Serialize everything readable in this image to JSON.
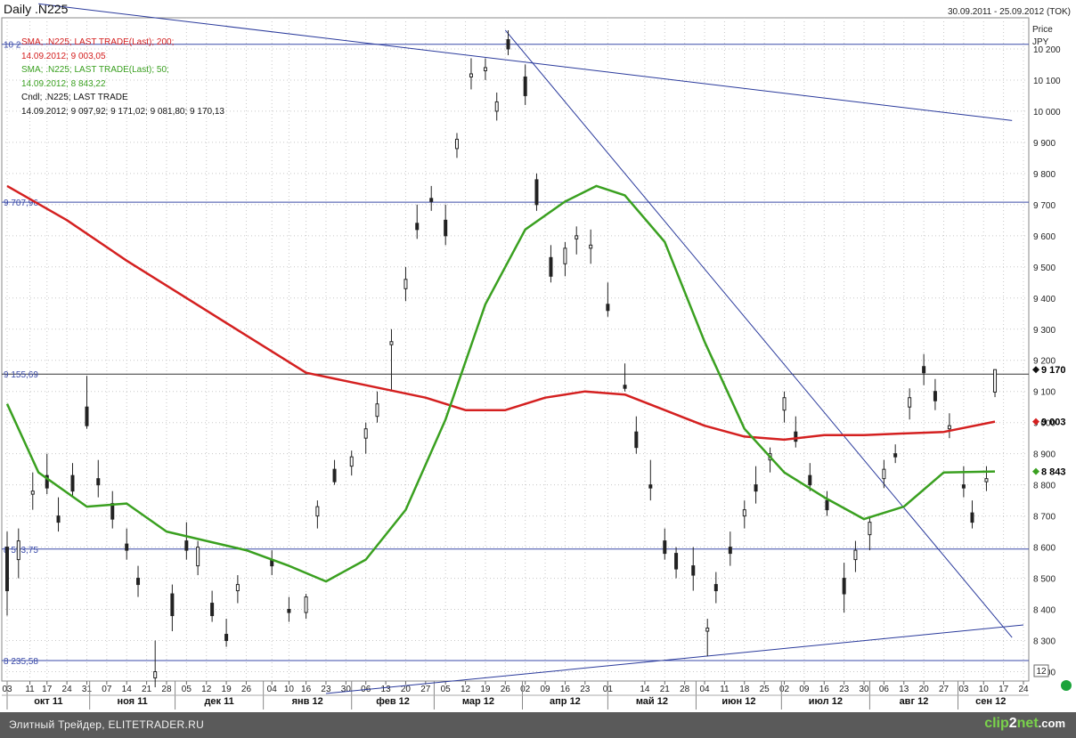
{
  "header": {
    "title": "Daily .N225",
    "range": "30.09.2011 - 25.09.2012 (TOK)"
  },
  "price_axis": {
    "title": "Price",
    "unit": "JPY",
    "counter": "12"
  },
  "legend": [
    {
      "line1": "SMA; .N225; LAST TRADE(Last);  200;",
      "line2": "14.09.2012; 9 003,05",
      "color": "#d42020"
    },
    {
      "line1": "SMA; .N225; LAST TRADE(Last);  50;",
      "line2": "14.09.2012; 8 843,22",
      "color": "#3aa020"
    },
    {
      "line1": "Cndl; .N225; LAST TRADE",
      "line2": "14.09.2012; 9 097,92; 9 171,02; 9 081,80; 9 170,13",
      "color": "#111111"
    }
  ],
  "footer": {
    "text": "Элитный Трейдер, ELITETRADER.RU",
    "logo_a": "clip",
    "logo_b": "2",
    "logo_c": "net",
    "logo_d": ".com"
  },
  "colors": {
    "sma200": "#d42020",
    "sma50": "#3aa020",
    "trendline": "#2a3a9c",
    "hline": "#3a4aa8",
    "candle": "#222222",
    "status_dot": "#1aa33a"
  },
  "chart_data": {
    "type": "candlestick",
    "title": "Daily .N225",
    "ylabel": "Price",
    "yunit": "JPY",
    "ylim": [
      8170,
      10300
    ],
    "xlim": [
      "2011-10-03",
      "2012-09-24"
    ],
    "grid": true,
    "y_ticks": [
      8200,
      8300,
      8400,
      8500,
      8600,
      8700,
      8800,
      8900,
      9000,
      9100,
      9200,
      9300,
      9400,
      9500,
      9600,
      9700,
      9800,
      9900,
      10000,
      10100,
      10200
    ],
    "y_tick_labels": [
      "8 200",
      "8 300",
      "8 400",
      "8 500",
      "8 600",
      "8 700",
      "8 800",
      "8 900",
      "9 000",
      "9 100",
      "9 200",
      "9 300",
      "9 400",
      "9 500",
      "9 600",
      "9 700",
      "9 800",
      "9 900",
      "10 000",
      "10 100",
      "10 200"
    ],
    "x_ticks": [
      {
        "date": "2011-10-03",
        "label": "03"
      },
      {
        "date": "2011-10-11",
        "label": "11"
      },
      {
        "date": "2011-10-17",
        "label": "17"
      },
      {
        "date": "2011-10-24",
        "label": "24"
      },
      {
        "date": "2011-10-31",
        "label": "31"
      },
      {
        "date": "2011-11-07",
        "label": "07"
      },
      {
        "date": "2011-11-14",
        "label": "14"
      },
      {
        "date": "2011-11-21",
        "label": "21"
      },
      {
        "date": "2011-11-28",
        "label": "28"
      },
      {
        "date": "2011-12-05",
        "label": "05"
      },
      {
        "date": "2011-12-12",
        "label": "12"
      },
      {
        "date": "2011-12-19",
        "label": "19"
      },
      {
        "date": "2011-12-26",
        "label": "26"
      },
      {
        "date": "2012-01-04",
        "label": "04"
      },
      {
        "date": "2012-01-10",
        "label": "10"
      },
      {
        "date": "2012-01-16",
        "label": "16"
      },
      {
        "date": "2012-01-23",
        "label": "23"
      },
      {
        "date": "2012-01-30",
        "label": "30"
      },
      {
        "date": "2012-02-06",
        "label": "06"
      },
      {
        "date": "2012-02-13",
        "label": "13"
      },
      {
        "date": "2012-02-20",
        "label": "20"
      },
      {
        "date": "2012-02-27",
        "label": "27"
      },
      {
        "date": "2012-03-05",
        "label": "05"
      },
      {
        "date": "2012-03-12",
        "label": "12"
      },
      {
        "date": "2012-03-19",
        "label": "19"
      },
      {
        "date": "2012-03-26",
        "label": "26"
      },
      {
        "date": "2012-04-02",
        "label": "02"
      },
      {
        "date": "2012-04-09",
        "label": "09"
      },
      {
        "date": "2012-04-16",
        "label": "16"
      },
      {
        "date": "2012-04-23",
        "label": "23"
      },
      {
        "date": "2012-05-01",
        "label": "01"
      },
      {
        "date": "2012-05-14",
        "label": "14"
      },
      {
        "date": "2012-05-21",
        "label": "21"
      },
      {
        "date": "2012-05-28",
        "label": "28"
      },
      {
        "date": "2012-06-04",
        "label": "04"
      },
      {
        "date": "2012-06-11",
        "label": "11"
      },
      {
        "date": "2012-06-18",
        "label": "18"
      },
      {
        "date": "2012-06-25",
        "label": "25"
      },
      {
        "date": "2012-07-02",
        "label": "02"
      },
      {
        "date": "2012-07-09",
        "label": "09"
      },
      {
        "date": "2012-07-16",
        "label": "16"
      },
      {
        "date": "2012-07-23",
        "label": "23"
      },
      {
        "date": "2012-07-30",
        "label": "30"
      },
      {
        "date": "2012-08-06",
        "label": "06"
      },
      {
        "date": "2012-08-13",
        "label": "13"
      },
      {
        "date": "2012-08-20",
        "label": "20"
      },
      {
        "date": "2012-08-27",
        "label": "27"
      },
      {
        "date": "2012-09-03",
        "label": "03"
      },
      {
        "date": "2012-09-10",
        "label": "10"
      },
      {
        "date": "2012-09-17",
        "label": "17"
      },
      {
        "date": "2012-09-24",
        "label": "24"
      }
    ],
    "months": [
      {
        "label": "окт 11",
        "start": "2011-10-03",
        "end": "2011-11-01"
      },
      {
        "label": "ноя 11",
        "start": "2011-11-01",
        "end": "2011-12-01"
      },
      {
        "label": "дек 11",
        "start": "2011-12-01",
        "end": "2012-01-01"
      },
      {
        "label": "янв 12",
        "start": "2012-01-01",
        "end": "2012-02-01"
      },
      {
        "label": "фев 12",
        "start": "2012-02-01",
        "end": "2012-03-01"
      },
      {
        "label": "мар 12",
        "start": "2012-03-01",
        "end": "2012-04-01"
      },
      {
        "label": "апр 12",
        "start": "2012-04-01",
        "end": "2012-05-01"
      },
      {
        "label": "май 12",
        "start": "2012-05-01",
        "end": "2012-06-01"
      },
      {
        "label": "июн 12",
        "start": "2012-06-01",
        "end": "2012-07-01"
      },
      {
        "label": "июл 12",
        "start": "2012-07-01",
        "end": "2012-08-01"
      },
      {
        "label": "авг 12",
        "start": "2012-08-01",
        "end": "2012-09-01"
      },
      {
        "label": "сен 12",
        "start": "2012-09-01",
        "end": "2012-09-24"
      }
    ],
    "horizontal_levels": [
      {
        "value": 10215,
        "label": "10 2"
      },
      {
        "value": 9707.96,
        "label": "9 707,96"
      },
      {
        "value": 9155.69,
        "label": "9 155,69"
      },
      {
        "value": 8593.75,
        "label": "8 593,75"
      },
      {
        "value": 8235.58,
        "label": "8 235,58"
      }
    ],
    "trendlines": [
      {
        "x1": "2011-10-14",
        "y1": 10345,
        "x2": "2012-09-20",
        "y2": 9970
      },
      {
        "x1": "2012-03-26",
        "y1": 10260,
        "x2": "2012-09-20",
        "y2": 8310
      },
      {
        "x1": "2012-01-23",
        "y1": 8130,
        "x2": "2012-09-24",
        "y2": 8350
      }
    ],
    "current_markers": [
      {
        "value": 9170,
        "label": "9 170",
        "color": "#111111"
      },
      {
        "value": 9003,
        "label": "9 003",
        "color": "#d42020"
      },
      {
        "value": 8843,
        "label": "8 843",
        "color": "#3aa020"
      }
    ],
    "series": [
      {
        "name": "SMA 200",
        "points": [
          [
            "2011-10-03",
            9760
          ],
          [
            "2011-10-24",
            9650
          ],
          [
            "2011-11-14",
            9520
          ],
          [
            "2011-12-05",
            9400
          ],
          [
            "2011-12-26",
            9280
          ],
          [
            "2012-01-16",
            9160
          ],
          [
            "2012-02-06",
            9120
          ],
          [
            "2012-02-27",
            9080
          ],
          [
            "2012-03-12",
            9040
          ],
          [
            "2012-03-26",
            9040
          ],
          [
            "2012-04-09",
            9080
          ],
          [
            "2012-04-23",
            9100
          ],
          [
            "2012-05-07",
            9090
          ],
          [
            "2012-05-21",
            9040
          ],
          [
            "2012-06-04",
            8990
          ],
          [
            "2012-06-18",
            8955
          ],
          [
            "2012-07-02",
            8945
          ],
          [
            "2012-07-16",
            8960
          ],
          [
            "2012-07-30",
            8960
          ],
          [
            "2012-08-13",
            8965
          ],
          [
            "2012-08-27",
            8970
          ],
          [
            "2012-09-14",
            9003
          ]
        ]
      },
      {
        "name": "SMA 50",
        "points": [
          [
            "2011-10-03",
            9060
          ],
          [
            "2011-10-14",
            8840
          ],
          [
            "2011-10-31",
            8730
          ],
          [
            "2011-11-14",
            8740
          ],
          [
            "2011-11-28",
            8650
          ],
          [
            "2011-12-12",
            8620
          ],
          [
            "2011-12-26",
            8590
          ],
          [
            "2012-01-10",
            8540
          ],
          [
            "2012-01-23",
            8490
          ],
          [
            "2012-02-06",
            8560
          ],
          [
            "2012-02-20",
            8720
          ],
          [
            "2012-03-05",
            9010
          ],
          [
            "2012-03-19",
            9380
          ],
          [
            "2012-04-02",
            9620
          ],
          [
            "2012-04-16",
            9710
          ],
          [
            "2012-04-27",
            9760
          ],
          [
            "2012-05-07",
            9730
          ],
          [
            "2012-05-21",
            9580
          ],
          [
            "2012-06-04",
            9260
          ],
          [
            "2012-06-18",
            8980
          ],
          [
            "2012-07-02",
            8840
          ],
          [
            "2012-07-16",
            8760
          ],
          [
            "2012-07-30",
            8690
          ],
          [
            "2012-08-13",
            8730
          ],
          [
            "2012-08-27",
            8840
          ],
          [
            "2012-09-14",
            8843
          ]
        ]
      }
    ],
    "candles": [
      [
        "2011-10-03",
        8600,
        8650,
        8380,
        8460
      ],
      [
        "2011-10-07",
        8560,
        8660,
        8500,
        8620
      ],
      [
        "2011-10-12",
        8770,
        8840,
        8720,
        8780
      ],
      [
        "2011-10-17",
        8830,
        8900,
        8770,
        8790
      ],
      [
        "2011-10-21",
        8700,
        8760,
        8650,
        8680
      ],
      [
        "2011-10-26",
        8830,
        8870,
        8760,
        8780
      ],
      [
        "2011-10-31",
        9050,
        9150,
        8980,
        8990
      ],
      [
        "2011-11-04",
        8820,
        8880,
        8760,
        8800
      ],
      [
        "2011-11-09",
        8740,
        8780,
        8660,
        8690
      ],
      [
        "2011-11-14",
        8610,
        8660,
        8560,
        8590
      ],
      [
        "2011-11-18",
        8500,
        8540,
        8440,
        8480
      ],
      [
        "2011-11-24",
        8180,
        8300,
        8150,
        8200
      ],
      [
        "2011-11-30",
        8450,
        8480,
        8330,
        8380
      ],
      [
        "2011-12-05",
        8620,
        8680,
        8560,
        8590
      ],
      [
        "2011-12-09",
        8540,
        8620,
        8510,
        8600
      ],
      [
        "2011-12-14",
        8420,
        8460,
        8360,
        8380
      ],
      [
        "2011-12-19",
        8320,
        8370,
        8280,
        8300
      ],
      [
        "2011-12-23",
        8460,
        8510,
        8420,
        8480
      ],
      [
        "2012-01-04",
        8560,
        8590,
        8510,
        8540
      ],
      [
        "2012-01-10",
        8400,
        8440,
        8360,
        8390
      ],
      [
        "2012-01-16",
        8390,
        8450,
        8370,
        8440
      ],
      [
        "2012-01-20",
        8700,
        8750,
        8660,
        8730
      ],
      [
        "2012-01-26",
        8850,
        8880,
        8800,
        8810
      ],
      [
        "2012-02-01",
        8860,
        8910,
        8830,
        8890
      ],
      [
        "2012-02-06",
        8950,
        9000,
        8900,
        8980
      ],
      [
        "2012-02-10",
        9020,
        9100,
        9000,
        9060
      ],
      [
        "2012-02-15",
        9250,
        9300,
        9100,
        9260
      ],
      [
        "2012-02-20",
        9430,
        9500,
        9390,
        9460
      ],
      [
        "2012-02-24",
        9640,
        9700,
        9590,
        9620
      ],
      [
        "2012-02-29",
        9720,
        9760,
        9680,
        9710
      ],
      [
        "2012-03-05",
        9650,
        9700,
        9570,
        9600
      ],
      [
        "2012-03-09",
        9880,
        9930,
        9850,
        9910
      ],
      [
        "2012-03-14",
        10110,
        10170,
        10070,
        10120
      ],
      [
        "2012-03-19",
        10130,
        10170,
        10100,
        10140
      ],
      [
        "2012-03-23",
        10000,
        10060,
        9970,
        10030
      ],
      [
        "2012-03-27",
        10230,
        10260,
        10180,
        10200
      ],
      [
        "2012-04-02",
        10110,
        10150,
        10020,
        10050
      ],
      [
        "2012-04-06",
        9780,
        9800,
        9680,
        9700
      ],
      [
        "2012-04-11",
        9530,
        9570,
        9450,
        9470
      ],
      [
        "2012-04-16",
        9510,
        9580,
        9470,
        9560
      ],
      [
        "2012-04-20",
        9590,
        9630,
        9540,
        9600
      ],
      [
        "2012-04-25",
        9560,
        9620,
        9510,
        9570
      ],
      [
        "2012-05-01",
        9380,
        9450,
        9340,
        9360
      ],
      [
        "2012-05-07",
        9120,
        9190,
        9100,
        9110
      ],
      [
        "2012-05-11",
        8970,
        9020,
        8900,
        8920
      ],
      [
        "2012-05-16",
        8800,
        8880,
        8750,
        8790
      ],
      [
        "2012-05-21",
        8620,
        8660,
        8560,
        8580
      ],
      [
        "2012-05-25",
        8580,
        8600,
        8500,
        8530
      ],
      [
        "2012-05-31",
        8540,
        8600,
        8460,
        8510
      ],
      [
        "2012-06-05",
        8330,
        8370,
        8250,
        8340
      ],
      [
        "2012-06-08",
        8480,
        8520,
        8420,
        8460
      ],
      [
        "2012-06-13",
        8600,
        8650,
        8540,
        8580
      ],
      [
        "2012-06-18",
        8700,
        8750,
        8660,
        8720
      ],
      [
        "2012-06-22",
        8800,
        8860,
        8740,
        8780
      ],
      [
        "2012-06-27",
        8880,
        8920,
        8840,
        8900
      ],
      [
        "2012-07-02",
        9040,
        9100,
        9000,
        9080
      ],
      [
        "2012-07-06",
        8970,
        9020,
        8920,
        8940
      ],
      [
        "2012-07-11",
        8830,
        8870,
        8780,
        8800
      ],
      [
        "2012-07-17",
        8750,
        8780,
        8700,
        8720
      ],
      [
        "2012-07-23",
        8500,
        8550,
        8390,
        8450
      ],
      [
        "2012-07-27",
        8560,
        8620,
        8520,
        8590
      ],
      [
        "2012-08-01",
        8640,
        8700,
        8590,
        8680
      ],
      [
        "2012-08-06",
        8820,
        8880,
        8790,
        8850
      ],
      [
        "2012-08-10",
        8900,
        8930,
        8870,
        8890
      ],
      [
        "2012-08-15",
        9050,
        9110,
        9010,
        9080
      ],
      [
        "2012-08-20",
        9180,
        9220,
        9120,
        9160
      ],
      [
        "2012-08-24",
        9100,
        9140,
        9040,
        9070
      ],
      [
        "2012-08-29",
        8980,
        9030,
        8950,
        8990
      ],
      [
        "2012-09-03",
        8800,
        8860,
        8760,
        8790
      ],
      [
        "2012-09-06",
        8710,
        8750,
        8660,
        8680
      ],
      [
        "2012-09-11",
        8810,
        8860,
        8780,
        8820
      ],
      [
        "2012-09-14",
        9097.92,
        9171.02,
        9081.8,
        9170.13
      ]
    ]
  }
}
